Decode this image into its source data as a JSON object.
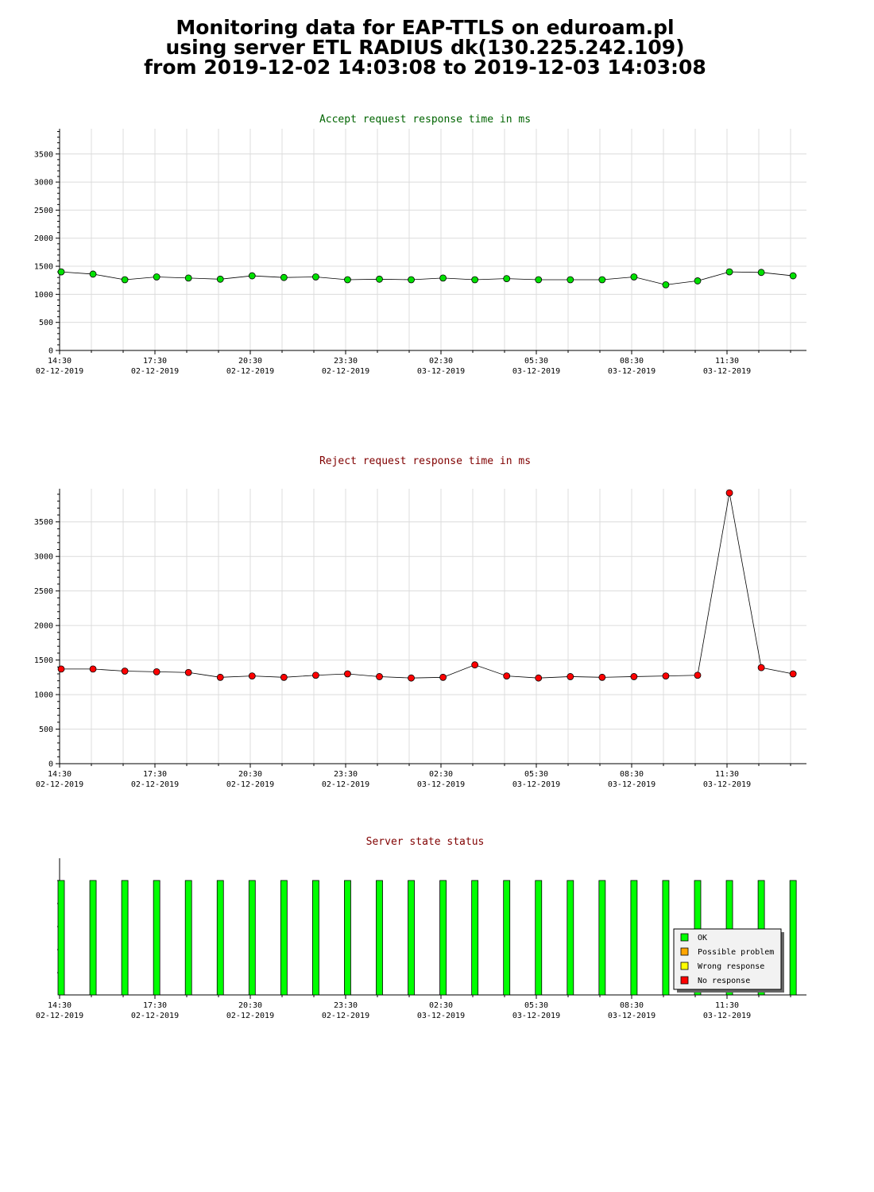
{
  "header": {
    "line1": "Monitoring data for EAP-TTLS on eduroam.pl",
    "line2": "using server ETL RADIUS dk(130.225.242.109)",
    "line3": "from 2019-12-02 14:03:08 to 2019-12-03 14:03:08"
  },
  "colors": {
    "accept_title": "#006400",
    "reject_title": "#800000",
    "status_title": "#800000",
    "accept_marker": "#00e000",
    "reject_marker": "#ff0000",
    "ok": "#00ff00",
    "possible_problem": "#ffa500",
    "wrong_response": "#ffff00",
    "no_response": "#ff0000"
  },
  "chart_data": [
    {
      "type": "line",
      "title": "Accept request response time in ms",
      "x_tick_labels": [
        [
          "14:30",
          "02-12-2019"
        ],
        [
          "17:30",
          "02-12-2019"
        ],
        [
          "20:30",
          "02-12-2019"
        ],
        [
          "23:30",
          "02-12-2019"
        ],
        [
          "02:30",
          "03-12-2019"
        ],
        [
          "05:30",
          "03-12-2019"
        ],
        [
          "08:30",
          "03-12-2019"
        ],
        [
          "11:30",
          "03-12-2019"
        ]
      ],
      "y_ticks": [
        0,
        500,
        1000,
        1500,
        2000,
        2500,
        3000,
        3500
      ],
      "ylim": [
        0,
        3950
      ],
      "grid": true,
      "values": [
        1400,
        1360,
        1260,
        1310,
        1290,
        1270,
        1330,
        1300,
        1310,
        1260,
        1270,
        1260,
        1290,
        1260,
        1280,
        1260,
        1260,
        1260,
        1310,
        1170,
        1240,
        1400,
        1390,
        1330
      ]
    },
    {
      "type": "line",
      "title": "Reject request response time in ms",
      "x_tick_labels": [
        [
          "14:30",
          "02-12-2019"
        ],
        [
          "17:30",
          "02-12-2019"
        ],
        [
          "20:30",
          "02-12-2019"
        ],
        [
          "23:30",
          "02-12-2019"
        ],
        [
          "02:30",
          "03-12-2019"
        ],
        [
          "05:30",
          "03-12-2019"
        ],
        [
          "08:30",
          "03-12-2019"
        ],
        [
          "11:30",
          "03-12-2019"
        ]
      ],
      "y_ticks": [
        0,
        500,
        1000,
        1500,
        2000,
        2500,
        3000,
        3500
      ],
      "ylim": [
        0,
        3980
      ],
      "grid": true,
      "values": [
        1370,
        1370,
        1340,
        1330,
        1320,
        1250,
        1270,
        1250,
        1280,
        1300,
        1260,
        1240,
        1250,
        1430,
        1270,
        1240,
        1260,
        1250,
        1260,
        1270,
        1280,
        3920,
        1390,
        1300
      ]
    },
    {
      "type": "bar",
      "title": "Server state status",
      "x_tick_labels": [
        [
          "14:30",
          "02-12-2019"
        ],
        [
          "17:30",
          "02-12-2019"
        ],
        [
          "20:30",
          "02-12-2019"
        ],
        [
          "23:30",
          "02-12-2019"
        ],
        [
          "02:30",
          "03-12-2019"
        ],
        [
          "05:30",
          "03-12-2019"
        ],
        [
          "08:30",
          "03-12-2019"
        ],
        [
          "11:30",
          "03-12-2019"
        ]
      ],
      "legend": [
        "OK",
        "Possible problem",
        "Wrong response",
        "No response"
      ],
      "legend_position": "bottom-right",
      "states": [
        "OK",
        "OK",
        "OK",
        "OK",
        "OK",
        "OK",
        "OK",
        "OK",
        "OK",
        "OK",
        "OK",
        "OK",
        "OK",
        "OK",
        "OK",
        "OK",
        "OK",
        "OK",
        "OK",
        "OK",
        "OK",
        "OK",
        "OK",
        "OK"
      ]
    }
  ]
}
